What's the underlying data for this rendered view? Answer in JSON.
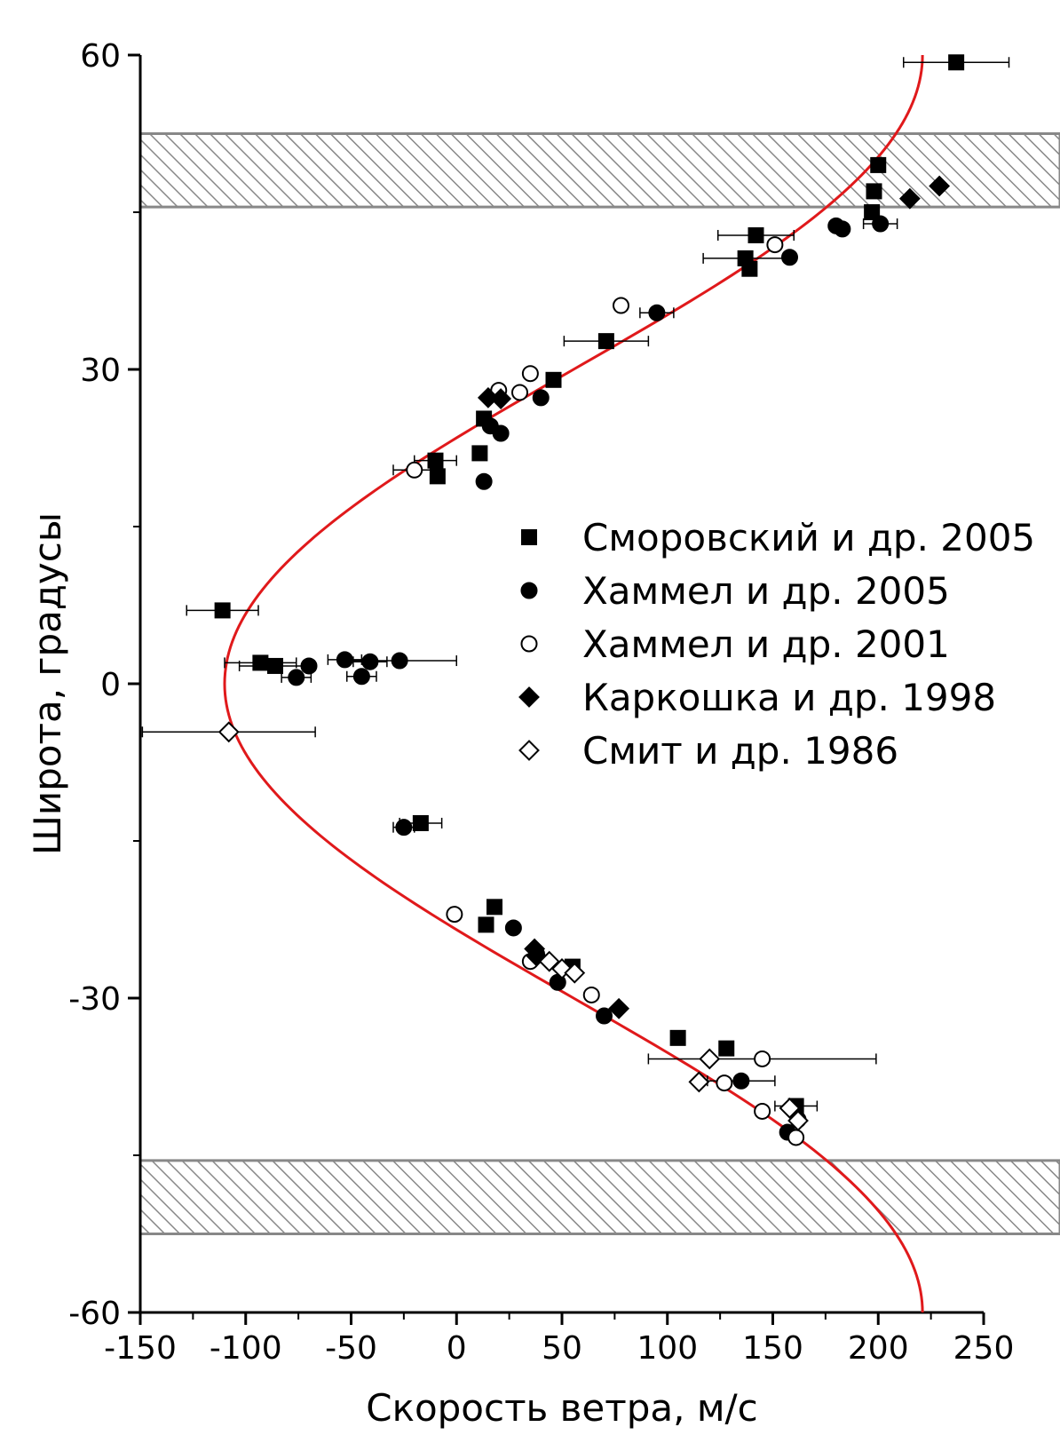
{
  "chart_data": {
    "type": "scatter",
    "xlabel": "Скорость ветра, м/с",
    "ylabel": "Широта, градусы",
    "xlim": [
      -150,
      250
    ],
    "ylim": [
      -60,
      60
    ],
    "x_ticks": [
      "-150",
      "-100",
      "-50",
      "0",
      "50",
      "100",
      "150",
      "200",
      "250"
    ],
    "y_ticks": [
      "-60",
      "-30",
      "0",
      "30",
      "60"
    ],
    "legend_position": "center-right",
    "colors": {
      "curve": "#e0191b",
      "markers": "#000000",
      "hatch": "#888888"
    },
    "shaded_bands": [
      {
        "lat_from": 45.5,
        "lat_to": 52.5
      },
      {
        "lat_from": -52.5,
        "lat_to": -45.5
      }
    ],
    "fit_curve": {
      "name": "",
      "x_min": -110,
      "x_max": 221,
      "form": "symmetric cosine-like profile"
    },
    "series": [
      {
        "name": "Сморовский и др. 2005",
        "marker": "square-filled",
        "points": [
          {
            "x": 237,
            "y": 59.3,
            "xerr": 25
          },
          {
            "x": 200,
            "y": 49.5,
            "xerr": 0
          },
          {
            "x": 198,
            "y": 47.0
          },
          {
            "x": 197,
            "y": 45.0
          },
          {
            "x": 142,
            "y": 42.8,
            "xerr": 18
          },
          {
            "x": 137,
            "y": 40.6,
            "xerr": 20
          },
          {
            "x": 139,
            "y": 39.6
          },
          {
            "x": 71,
            "y": 32.7,
            "xerr": 20
          },
          {
            "x": 46,
            "y": 29.0
          },
          {
            "x": 13,
            "y": 25.3
          },
          {
            "x": 11,
            "y": 22.0
          },
          {
            "x": -10,
            "y": 21.3,
            "xerr": 10
          },
          {
            "x": -9,
            "y": 19.8
          },
          {
            "x": -111,
            "y": 7.0,
            "xerr": 17
          },
          {
            "x": -93,
            "y": 2.0,
            "xerr": 17
          },
          {
            "x": -86,
            "y": 1.7,
            "xerr": 17
          },
          {
            "x": -17,
            "y": -13.3,
            "xerr": 10
          },
          {
            "x": 18,
            "y": -21.3
          },
          {
            "x": 14,
            "y": -23.0
          },
          {
            "x": 55,
            "y": -27.0
          },
          {
            "x": 105,
            "y": -33.8
          },
          {
            "x": 128,
            "y": -34.8
          },
          {
            "x": 161,
            "y": -40.3,
            "xerr": 10
          }
        ]
      },
      {
        "name": "Хаммел и др. 2005",
        "marker": "circle-filled",
        "points": [
          {
            "x": 201,
            "y": 43.9,
            "xerr": 8
          },
          {
            "x": 183,
            "y": 43.4
          },
          {
            "x": 180,
            "y": 43.7
          },
          {
            "x": 158,
            "y": 40.7
          },
          {
            "x": 95,
            "y": 35.4,
            "xerr": 8
          },
          {
            "x": 40,
            "y": 27.3
          },
          {
            "x": 16,
            "y": 24.6
          },
          {
            "x": 21,
            "y": 23.9
          },
          {
            "x": 13,
            "y": 19.3
          },
          {
            "x": -27,
            "y": 2.2,
            "xerr": 27
          },
          {
            "x": -41,
            "y": 2.1,
            "xerr": 8
          },
          {
            "x": -53,
            "y": 2.3,
            "xerr": 8
          },
          {
            "x": -70,
            "y": 1.7
          },
          {
            "x": -76,
            "y": 0.6,
            "xerr": 7
          },
          {
            "x": -45,
            "y": 0.7,
            "xerr": 7
          },
          {
            "x": -25,
            "y": -13.7,
            "xerr": 5
          },
          {
            "x": 27,
            "y": -23.3
          },
          {
            "x": 38,
            "y": -25.8
          },
          {
            "x": 48,
            "y": -28.5
          },
          {
            "x": 70,
            "y": -31.7
          },
          {
            "x": 135,
            "y": -37.9,
            "xerr": 16
          },
          {
            "x": 157,
            "y": -42.8
          }
        ]
      },
      {
        "name": "Хаммел и др. 2001",
        "marker": "circle-open",
        "points": [
          {
            "x": 78,
            "y": 36.1
          },
          {
            "x": 151,
            "y": 41.9
          },
          {
            "x": 35,
            "y": 29.6
          },
          {
            "x": 20,
            "y": 28.0
          },
          {
            "x": 30,
            "y": 27.8
          },
          {
            "x": -20,
            "y": 20.4,
            "xerr": 10
          },
          {
            "x": -1,
            "y": -22.0
          },
          {
            "x": 35,
            "y": -26.5
          },
          {
            "x": 64,
            "y": -29.7
          },
          {
            "x": 145,
            "y": -35.8,
            "xerr": 54
          },
          {
            "x": 127,
            "y": -38.1
          },
          {
            "x": 145,
            "y": -40.8
          },
          {
            "x": 161,
            "y": -43.3
          },
          {
            "x": 162,
            "y": -41.6
          }
        ]
      },
      {
        "name": "Каркошка и др. 1998",
        "marker": "diamond-filled",
        "points": [
          {
            "x": 229,
            "y": 47.5
          },
          {
            "x": 215,
            "y": 46.3
          },
          {
            "x": 15,
            "y": 27.3
          },
          {
            "x": 21,
            "y": 27.2
          },
          {
            "x": 37,
            "y": -25.3
          },
          {
            "x": 38,
            "y": -26.0
          },
          {
            "x": 77,
            "y": -31.0
          }
        ]
      },
      {
        "name": "Смит и др. 1986",
        "marker": "diamond-open",
        "points": [
          {
            "x": -108,
            "y": -4.6,
            "xerr": 41
          },
          {
            "x": 44,
            "y": -26.5
          },
          {
            "x": 50,
            "y": -27.2
          },
          {
            "x": 56,
            "y": -27.6
          },
          {
            "x": 120,
            "y": -35.8
          },
          {
            "x": 115,
            "y": -38.0
          },
          {
            "x": 158,
            "y": -40.5
          },
          {
            "x": 162,
            "y": -41.7
          }
        ]
      }
    ]
  }
}
